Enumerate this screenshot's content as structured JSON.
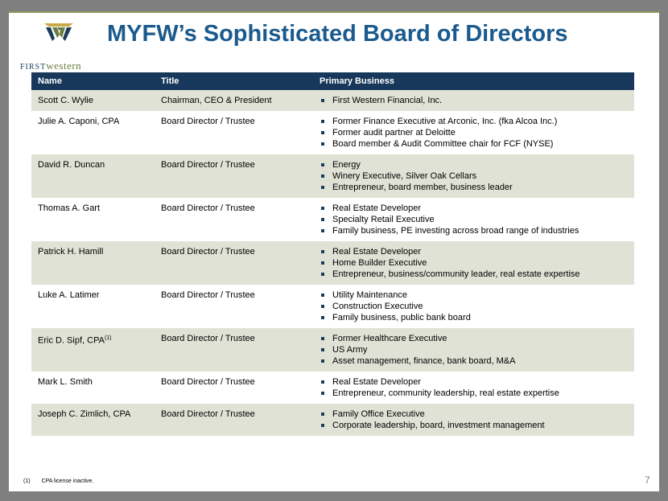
{
  "slide": {
    "title": "MYFW’s Sophisticated Board of Directors",
    "page_number": "7"
  },
  "logo": {
    "word_first": "FIRST",
    "word_western": "western",
    "colors": {
      "navy": "#1b3d5a",
      "olive": "#6b7e3e",
      "gold": "#c9a94a"
    }
  },
  "table": {
    "headers": [
      "Name",
      "Title",
      "Primary Business"
    ],
    "rows": [
      {
        "name": "Scott C. Wylie",
        "title": "Chairman, CEO & President",
        "business": [
          "First Western Financial, Inc."
        ]
      },
      {
        "name": "Julie A. Caponi, CPA",
        "title": "Board Director / Trustee",
        "business": [
          "Former Finance Executive at Arconic, Inc. (fka Alcoa Inc.)",
          "Former audit partner at Deloitte",
          "Board member & Audit Committee chair for FCF (NYSE)"
        ]
      },
      {
        "name": "David R. Duncan",
        "title": "Board Director / Trustee",
        "business": [
          "Energy",
          "Winery Executive, Silver Oak Cellars",
          "Entrepreneur, board member, business leader"
        ]
      },
      {
        "name": "Thomas A. Gart",
        "title": "Board Director / Trustee",
        "business": [
          "Real Estate Developer",
          "Specialty Retail Executive",
          "Family business, PE investing across broad range of industries"
        ]
      },
      {
        "name": "Patrick H. Hamill",
        "title": "Board Director / Trustee",
        "business": [
          "Real Estate Developer",
          "Home Builder Executive",
          "Entrepreneur, business/community leader, real estate expertise"
        ]
      },
      {
        "name": "Luke A. Latimer",
        "title": "Board Director / Trustee",
        "business": [
          "Utility Maintenance",
          "Construction Executive",
          "Family business, public bank board"
        ]
      },
      {
        "name": "Eric D. Sipf, CPA",
        "name_sup": "(1)",
        "title": "Board Director / Trustee",
        "business": [
          "Former Healthcare Executive",
          "US Army",
          "Asset management, finance, bank board, M&A"
        ]
      },
      {
        "name": "Mark L. Smith",
        "title": "Board Director / Trustee",
        "business": [
          "Real Estate Developer",
          "Entrepreneur, community leadership, real estate expertise"
        ]
      },
      {
        "name": "Joseph C. Zimlich, CPA",
        "title": "Board Director / Trustee",
        "business": [
          "Family Office Executive",
          "Corporate leadership, board, investment management"
        ]
      }
    ]
  },
  "footnote": {
    "mark": "(1)",
    "text": "CPA license inactive."
  }
}
